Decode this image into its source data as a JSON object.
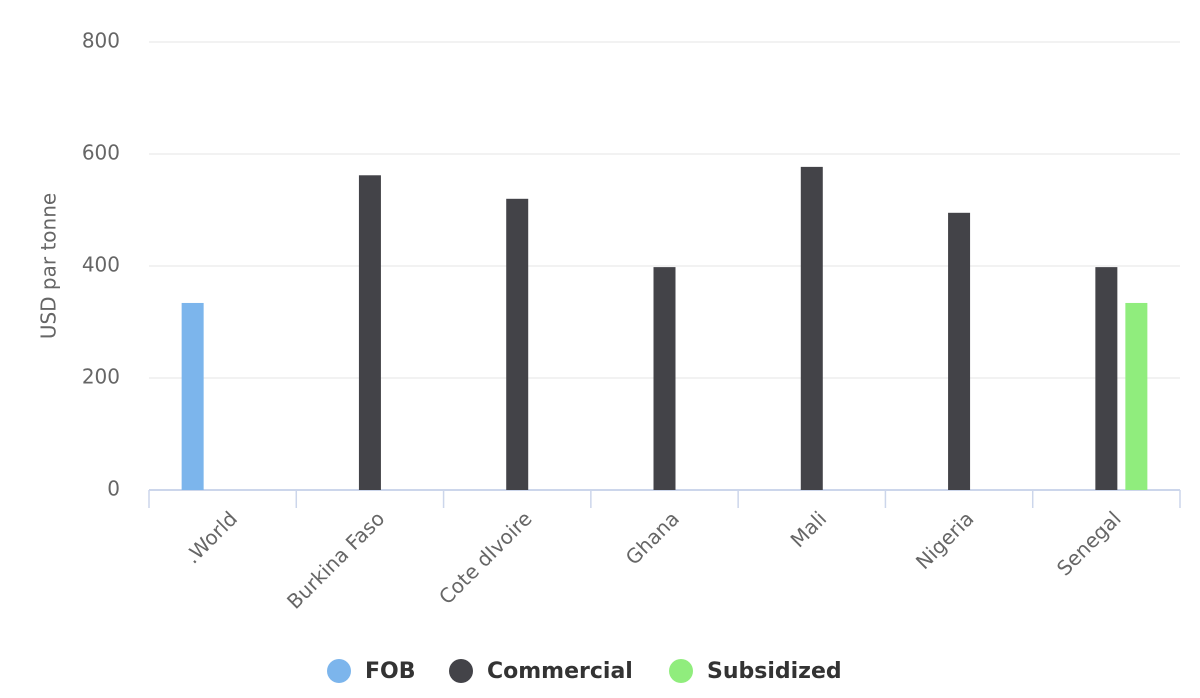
{
  "chart_data": {
    "type": "bar",
    "y_label": "USD par tonne",
    "categories": [
      ".World",
      "Burkina Faso",
      "Cote dIvoire",
      "Ghana",
      "Mali",
      "Nigeria",
      "Senegal"
    ],
    "series": [
      {
        "name": "FOB",
        "color": "#7cb5ec",
        "values": [
          334,
          null,
          null,
          null,
          null,
          null,
          null
        ]
      },
      {
        "name": "Commercial",
        "color": "#434348",
        "values": [
          null,
          562,
          520,
          398,
          577,
          495,
          398
        ]
      },
      {
        "name": "Subsidized",
        "color": "#90ed7d",
        "values": [
          null,
          null,
          null,
          null,
          null,
          null,
          334
        ]
      }
    ],
    "ylim": [
      0,
      800
    ],
    "yticks": [
      0,
      200,
      400,
      600,
      800
    ],
    "grid": true,
    "legend": "bottom"
  }
}
